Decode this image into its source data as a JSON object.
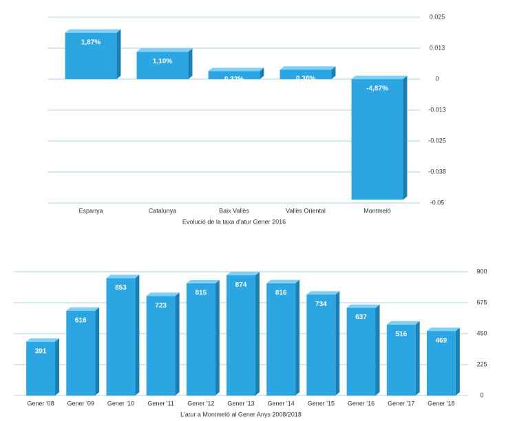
{
  "chart_data": [
    {
      "type": "bar",
      "xlabel": "Evolució de la taxa d'atur Gener 2016",
      "categories": [
        "Espanya",
        "Catalunya",
        "Baix Vallès",
        "Vallès Oriental",
        "Montmeló"
      ],
      "values": [
        0.0187,
        0.011,
        0.0032,
        0.0038,
        -0.0487
      ],
      "value_labels": [
        "1,87%",
        "1,10%",
        "0,32%",
        "0,38%",
        "-4,87%"
      ],
      "color": "#2ba6e3",
      "ylim": [
        -0.05,
        0.025
      ],
      "yticks": [
        {
          "value": -0.05,
          "label": "-0.05"
        },
        {
          "value": -0.0375,
          "label": "-0.038"
        },
        {
          "value": -0.025,
          "label": "-0.025"
        },
        {
          "value": -0.0125,
          "label": "-0.013"
        },
        0,
        {
          "value": 0.0125,
          "label": "0.013"
        },
        0.025
      ],
      "grid": true
    },
    {
      "type": "bar",
      "xlabel": "L'atur a Montmeló al Gener Anys 2008/2018",
      "categories": [
        "Gener '08",
        "Gener '09",
        "Gener '10",
        "Gener '11",
        "Gener '12",
        "Gener '13",
        "Gener '14",
        "Gener '15",
        "Gener '16",
        "Gener '17",
        "Gener '18"
      ],
      "values": [
        391,
        616,
        853,
        723,
        815,
        874,
        816,
        734,
        637,
        516,
        469
      ],
      "color": "#2ba6e3",
      "ylim": [
        0,
        900
      ],
      "yticks": [
        0,
        225,
        450,
        675,
        900
      ],
      "grid": true
    }
  ]
}
